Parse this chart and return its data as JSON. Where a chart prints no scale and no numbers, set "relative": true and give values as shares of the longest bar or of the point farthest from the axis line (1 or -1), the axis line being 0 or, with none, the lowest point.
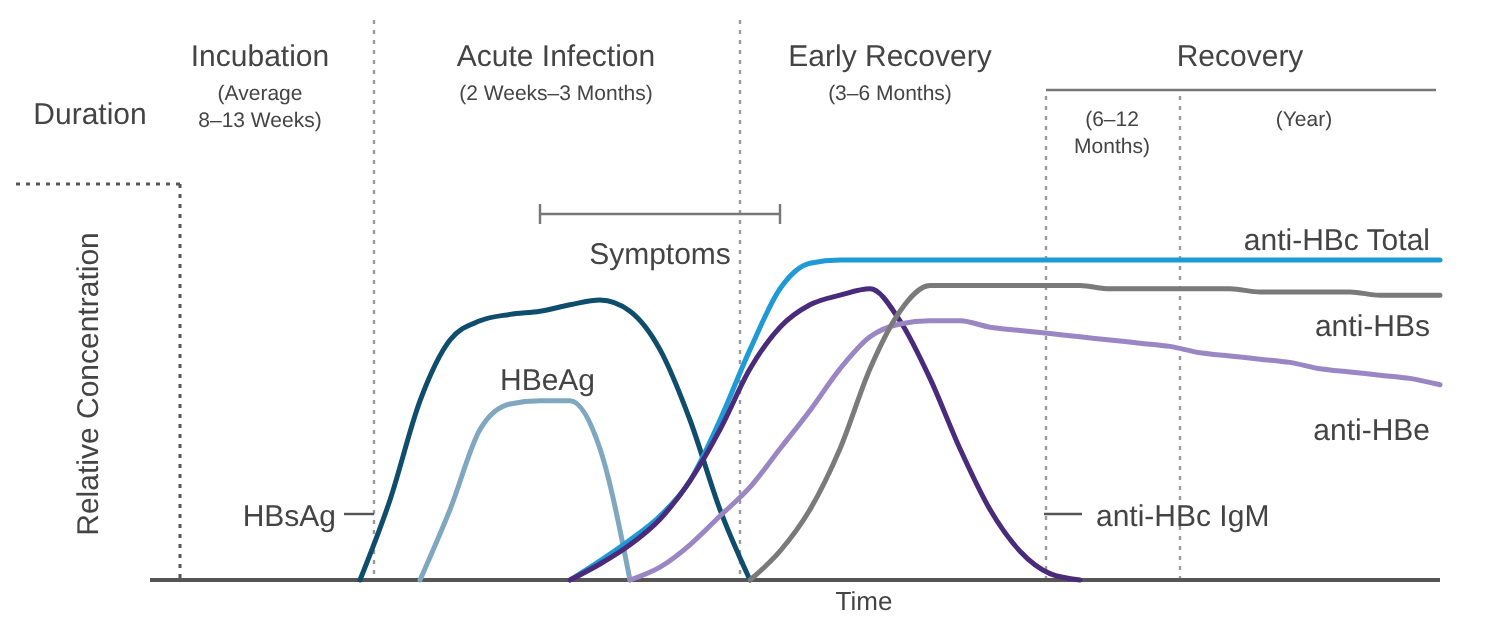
{
  "chart_data": {
    "type": "line",
    "relative": true,
    "xlabel": "Time",
    "ylabel": "Relative Concentration",
    "marker": "none",
    "line_style": "solid",
    "categories": [
      null,
      null,
      null,
      null,
      null,
      null,
      null,
      null,
      null,
      null,
      null,
      null,
      null,
      null,
      null,
      null,
      null,
      null,
      null,
      null,
      null,
      null,
      null,
      null,
      null,
      null,
      null,
      null,
      null,
      null,
      null,
      null,
      null,
      null,
      null,
      null,
      null,
      null,
      null,
      null,
      null,
      null,
      null,
      null
    ],
    "series": [
      {
        "name": "HBsAg",
        "color": "#0e4d6b",
        "values": [
          null,
          null,
          null,
          null,
          null,
          null,
          null,
          0,
          0.25,
          0.56,
          0.75,
          0.81,
          0.83,
          0.84,
          0.86,
          0.875,
          0.84,
          0.72,
          0.5,
          0.22,
          0,
          null,
          null,
          null,
          null,
          null,
          null,
          null,
          null,
          null,
          null,
          null,
          null,
          null,
          null,
          null,
          null,
          null,
          null,
          null,
          null,
          null,
          null,
          null
        ]
      },
      {
        "name": "HBeAg",
        "color": "#7fa7c0",
        "values": [
          null,
          null,
          null,
          null,
          null,
          null,
          null,
          null,
          null,
          0,
          0.22,
          0.47,
          0.55,
          0.56,
          0.56,
          0.41,
          0,
          null,
          null,
          null,
          null,
          null,
          null,
          null,
          null,
          null,
          null,
          null,
          null,
          null,
          null,
          null,
          null,
          null,
          null,
          null,
          null,
          null,
          null,
          null,
          null,
          null,
          null,
          null
        ]
      },
      {
        "name": "anti-HBc Total",
        "color": "#1e9ad6",
        "values": [
          null,
          null,
          null,
          null,
          null,
          null,
          null,
          null,
          null,
          null,
          null,
          null,
          null,
          null,
          0,
          0.06,
          0.125,
          0.2,
          0.31,
          0.5,
          0.72,
          0.91,
          0.99,
          1,
          1,
          1,
          1,
          1,
          1,
          1,
          1,
          1,
          1,
          1,
          1,
          1,
          1,
          1,
          1,
          1,
          1,
          1,
          1,
          1
        ]
      },
      {
        "name": "anti-HBc IgM",
        "color": "#4a2a7a",
        "values": [
          null,
          null,
          null,
          null,
          null,
          null,
          null,
          null,
          null,
          null,
          null,
          null,
          null,
          null,
          0,
          0.05,
          0.11,
          0.19,
          0.31,
          0.47,
          0.66,
          0.79,
          0.86,
          0.89,
          0.91,
          0.81,
          0.63,
          0.41,
          0.22,
          0.09,
          0.02,
          0,
          null,
          null,
          null,
          null,
          null,
          null,
          null,
          null,
          null,
          null,
          null,
          null
        ]
      },
      {
        "name": "anti-HBe",
        "color": "#9b86c4",
        "values": [
          null,
          null,
          null,
          null,
          null,
          null,
          null,
          null,
          null,
          null,
          null,
          null,
          null,
          null,
          null,
          null,
          0,
          0.04,
          0.11,
          0.2,
          0.29,
          0.41,
          0.53,
          0.66,
          0.76,
          0.8,
          0.81,
          0.81,
          0.79,
          0.78,
          0.77,
          0.76,
          0.75,
          0.74,
          0.73,
          0.71,
          0.7,
          0.69,
          0.68,
          0.66,
          0.65,
          0.64,
          0.63,
          0.61
        ]
      },
      {
        "name": "anti-HBs",
        "color": "#7a7a7a",
        "values": [
          null,
          null,
          null,
          null,
          null,
          null,
          null,
          null,
          null,
          null,
          null,
          null,
          null,
          null,
          null,
          null,
          null,
          null,
          null,
          null,
          0,
          0.09,
          0.22,
          0.41,
          0.66,
          0.84,
          0.92,
          0.92,
          0.92,
          0.92,
          0.92,
          0.92,
          0.91,
          0.91,
          0.91,
          0.91,
          0.91,
          0.9,
          0.9,
          0.9,
          0.9,
          0.89,
          0.89,
          0.89
        ]
      }
    ],
    "annotations": [
      "Duration",
      "Incubation",
      "(Average 8–13 Weeks)",
      "Acute Infection",
      "(2 Weeks–3 Months)",
      "Early Recovery",
      "(3–6 Months)",
      "Recovery",
      "(6–12 Months)",
      "(Year)",
      "Symptoms"
    ]
  }
}
